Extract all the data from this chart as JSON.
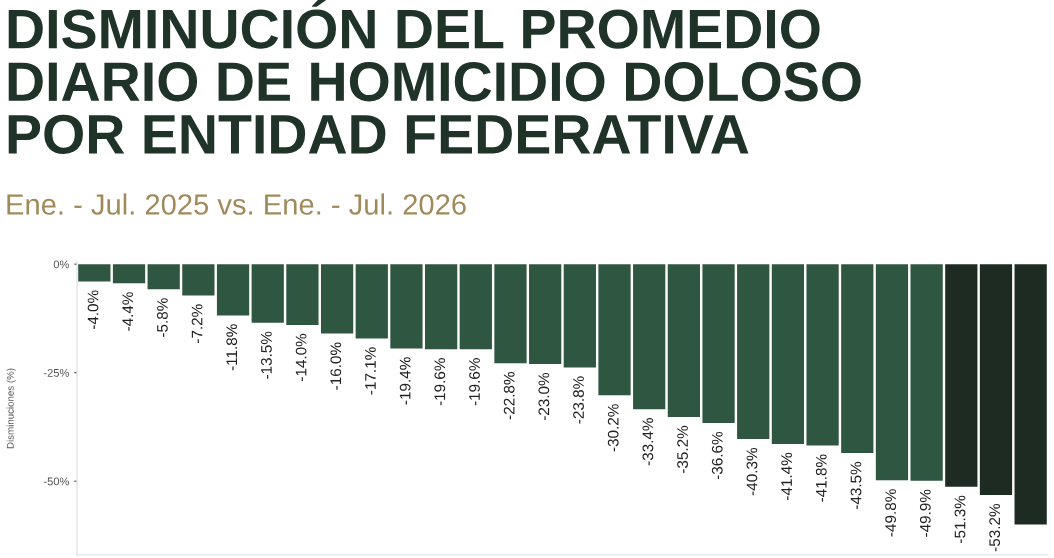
{
  "chart_data": {
    "type": "bar",
    "title": "DISMINUCIÓN DEL PROMEDIO\nDIARIO DE HOMICIDIO DOLOSO\nPOR ENTIDAD FEDERATIVA",
    "subtitle": "Ene. - Jul. 2025 vs. Ene. - Jul. 2026",
    "ylabel": "Disminuciones (%)",
    "categories": [
      null,
      null,
      null,
      null,
      null,
      null,
      null,
      null,
      null,
      null,
      null,
      null,
      null,
      null,
      null,
      null,
      null,
      null,
      null,
      null,
      null,
      null,
      null,
      null,
      null,
      null,
      null,
      null
    ],
    "values": [
      -4.0,
      -4.4,
      -5.8,
      -7.2,
      -11.8,
      -13.5,
      -14.0,
      -16.0,
      -17.1,
      -19.4,
      -19.6,
      -19.6,
      -22.8,
      -23.0,
      -23.8,
      -30.2,
      -33.4,
      -35.2,
      -36.6,
      -40.3,
      -41.4,
      -41.8,
      -43.5,
      -49.8,
      -49.9,
      -51.3,
      -53.2,
      -60
    ],
    "value_labels": [
      "-4.0%",
      "-4.4%",
      "-5.8%",
      "-7.2%",
      "-11.8%",
      "-13.5%",
      "-14.0%",
      "-16.0%",
      "-17.1%",
      "-19.4%",
      "-19.6%",
      "-19.6%",
      "-22.8%",
      "-23.0%",
      "-23.8%",
      "-30.2%",
      "-33.4%",
      "-35.2%",
      "-36.6%",
      "-40.3%",
      "-41.4%",
      "-41.8%",
      "-43.5%",
      "-49.8%",
      "-49.9%",
      "-51.3%",
      "-53.2%",
      null
    ],
    "colors": [
      "#2f5640",
      "#2f5640",
      "#2f5640",
      "#2f5640",
      "#2f5640",
      "#2f5640",
      "#2f5640",
      "#2f5640",
      "#2f5640",
      "#2f5640",
      "#2f5640",
      "#2f5640",
      "#2f5640",
      "#2f5640",
      "#2f5640",
      "#2f5640",
      "#2f5640",
      "#2f5640",
      "#2f5640",
      "#2f5640",
      "#2f5640",
      "#2f5640",
      "#2f5640",
      "#2f5640",
      "#2f5640",
      "#1e2b22",
      "#1e2b22",
      "#1e2b22"
    ],
    "ylim": [
      -67,
      0.5
    ],
    "yticks": [
      {
        "value": 0,
        "label": "0%"
      },
      {
        "value": -25,
        "label": "-25%"
      },
      {
        "value": -50,
        "label": "-50%"
      }
    ],
    "grid": false
  }
}
